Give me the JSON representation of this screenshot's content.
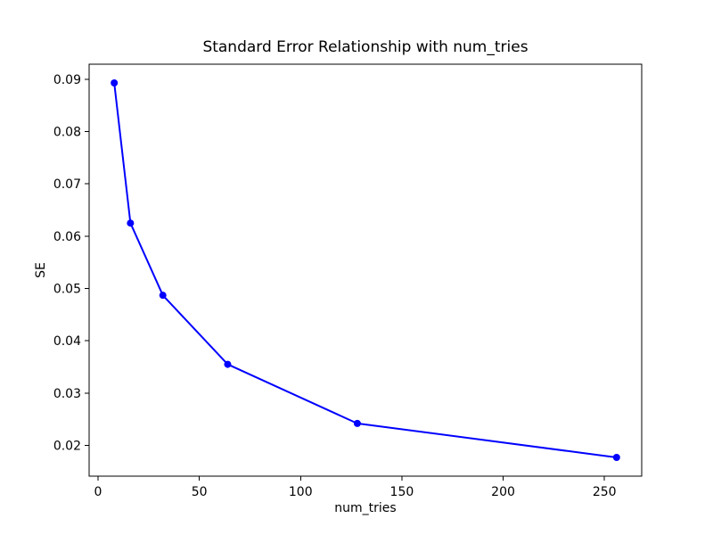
{
  "figure": {
    "background": "#ffffff"
  },
  "chart_data": {
    "type": "line",
    "title": "Standard Error Relationship with num_tries",
    "xlabel": "num_tries",
    "ylabel": "SE",
    "x": [
      8,
      16,
      32,
      64,
      128,
      256
    ],
    "y": [
      0.0893,
      0.0625,
      0.0487,
      0.0355,
      0.0242,
      0.0177
    ],
    "series": [
      {
        "name": "SE",
        "x": [
          8,
          16,
          32,
          64,
          128,
          256
        ],
        "values": [
          0.0893,
          0.0625,
          0.0487,
          0.0355,
          0.0242,
          0.0177
        ]
      }
    ],
    "xlim": [
      -4.4,
      268.4
    ],
    "ylim": [
      0.01412,
      0.09288
    ],
    "x_tick_values": [
      0,
      50,
      100,
      150,
      200,
      250
    ],
    "x_tick_labels": [
      "0",
      "50",
      "100",
      "150",
      "200",
      "250"
    ],
    "y_tick_values": [
      0.02,
      0.03,
      0.04,
      0.05,
      0.06,
      0.07,
      0.08,
      0.09
    ],
    "y_tick_labels": [
      "0.02",
      "0.03",
      "0.04",
      "0.05",
      "0.06",
      "0.07",
      "0.08",
      "0.09"
    ],
    "line_color": "#0000ff",
    "marker": "o",
    "marker_size": 8,
    "line_width": 2,
    "grid": false,
    "legend_position": "none",
    "axes_color": "#000000",
    "text_color": "#000000"
  }
}
